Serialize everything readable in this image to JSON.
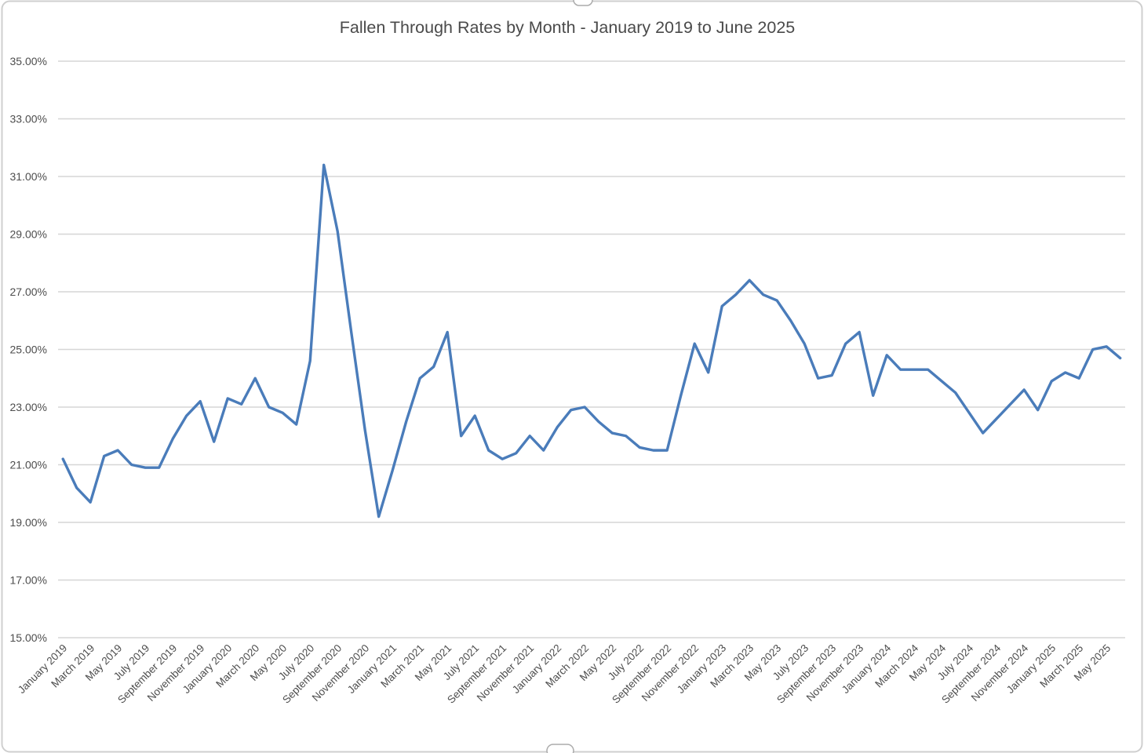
{
  "chart_data": {
    "type": "line",
    "title": "Fallen Through Rates by Month - January 2019 to June 2025",
    "x": [
      "January 2019",
      "February 2019",
      "March 2019",
      "April 2019",
      "May 2019",
      "June 2019",
      "July 2019",
      "August 2019",
      "September 2019",
      "October 2019",
      "November 2019",
      "December 2019",
      "January 2020",
      "February 2020",
      "March 2020",
      "April 2020",
      "May 2020",
      "June 2020",
      "July 2020",
      "August 2020",
      "September 2020",
      "October 2020",
      "November 2020",
      "December 2020",
      "January 2021",
      "February 2021",
      "March 2021",
      "April 2021",
      "May 2021",
      "June 2021",
      "July 2021",
      "August 2021",
      "September 2021",
      "October 2021",
      "November 2021",
      "December 2021",
      "January 2022",
      "February 2022",
      "March 2022",
      "April 2022",
      "May 2022",
      "June 2022",
      "July 2022",
      "August 2022",
      "September 2022",
      "October 2022",
      "November 2022",
      "December 2022",
      "January 2023",
      "February 2023",
      "March 2023",
      "April 2023",
      "May 2023",
      "June 2023",
      "July 2023",
      "August 2023",
      "September 2023",
      "October 2023",
      "November 2023",
      "December 2023",
      "January 2024",
      "February 2024",
      "March 2024",
      "April 2024",
      "May 2024",
      "June 2024",
      "July 2024",
      "August 2024",
      "September 2024",
      "October 2024",
      "November 2024",
      "December 2024",
      "January 2025",
      "February 2025",
      "March 2025",
      "April 2025",
      "May 2025",
      "June 2025"
    ],
    "values": [
      21.2,
      20.2,
      19.7,
      21.3,
      21.5,
      21.0,
      20.9,
      20.9,
      21.9,
      22.7,
      23.2,
      21.8,
      23.3,
      23.1,
      24.0,
      23.0,
      22.8,
      22.4,
      24.6,
      31.4,
      29.1,
      25.6,
      22.2,
      19.2,
      20.8,
      22.5,
      24.0,
      24.4,
      25.6,
      22.0,
      22.7,
      21.5,
      21.2,
      21.4,
      22.0,
      21.5,
      22.3,
      22.9,
      23.0,
      22.5,
      22.1,
      22.0,
      21.6,
      21.5,
      21.5,
      23.4,
      25.2,
      24.2,
      26.5,
      26.9,
      27.4,
      26.9,
      26.7,
      26.0,
      25.2,
      24.0,
      24.1,
      25.2,
      25.6,
      23.4,
      24.8,
      24.3,
      24.3,
      24.3,
      23.9,
      23.5,
      22.8,
      22.1,
      22.6,
      23.1,
      23.6,
      22.9,
      23.9,
      24.2,
      24.0,
      25.0,
      25.1,
      24.7
    ],
    "ylim": [
      15,
      35
    ],
    "y_tick_step": 2,
    "y_tick_labels": [
      "15.00%",
      "17.00%",
      "19.00%",
      "21.00%",
      "23.00%",
      "25.00%",
      "27.00%",
      "29.00%",
      "31.00%",
      "33.00%",
      "35.00%"
    ],
    "x_tick_interval": 2,
    "grid": true,
    "legend": false,
    "xlabel": "",
    "ylabel": "",
    "line_color": "#4a7cba",
    "gridline_color": "#d6d6d6",
    "label_color": "#4d4d4d",
    "title_color": "#4a4a4a",
    "frame_color": "#cfcfcf"
  }
}
